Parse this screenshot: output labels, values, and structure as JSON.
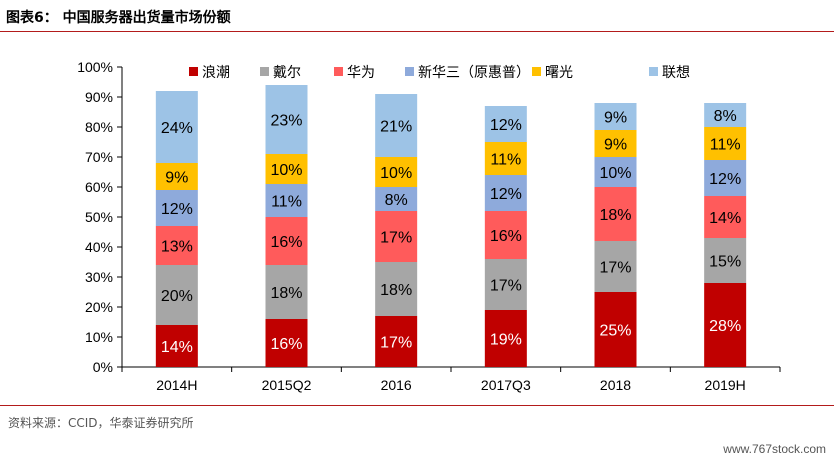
{
  "header": {
    "title": "图表6：  中国服务器出货量市场份额"
  },
  "footer": {
    "source": "资料来源：CCID，华泰证券研究所"
  },
  "watermark": "www.767stock.com",
  "chart_data": {
    "type": "bar",
    "stacked": true,
    "categories": [
      "2014H",
      "2015Q2",
      "2016",
      "2017Q3",
      "2018",
      "2019H"
    ],
    "series": [
      {
        "name": "浪潮",
        "color": "#c00000",
        "values": [
          14,
          16,
          17,
          19,
          25,
          28
        ],
        "labels": [
          "14%",
          "16%",
          "17%",
          "19%",
          "25%",
          "28%"
        ]
      },
      {
        "name": "戴尔",
        "color": "#a6a6a6",
        "values": [
          20,
          18,
          18,
          17,
          17,
          15
        ],
        "labels": [
          "20%",
          "18%",
          "18%",
          "17%",
          "17%",
          "15%"
        ]
      },
      {
        "name": "华为",
        "color": "#ff5b5b",
        "values": [
          13,
          16,
          17,
          16,
          18,
          14
        ],
        "labels": [
          "13%",
          "16%",
          "17%",
          "16%",
          "18%",
          "14%"
        ]
      },
      {
        "name": "新华三（原惠普）",
        "color": "#8eaadb",
        "values": [
          12,
          11,
          8,
          12,
          10,
          12
        ],
        "labels": [
          "12%",
          "11%",
          "8%",
          "12%",
          "10%",
          "12%"
        ]
      },
      {
        "name": "曙光",
        "color": "#ffc000",
        "values": [
          9,
          10,
          10,
          11,
          9,
          11
        ],
        "labels": [
          "9%",
          "10%",
          "10%",
          "11%",
          "9%",
          "11%"
        ]
      },
      {
        "name": "联想",
        "color": "#9dc3e6",
        "values": [
          24,
          23,
          21,
          12,
          9,
          8
        ],
        "labels": [
          "24%",
          "23%",
          "21%",
          "12%",
          "9%",
          "8%"
        ]
      }
    ],
    "ylim": [
      0,
      100
    ],
    "yticks": [
      0,
      10,
      20,
      30,
      40,
      50,
      60,
      70,
      80,
      90,
      100
    ],
    "ytick_labels": [
      "0%",
      "10%",
      "20%",
      "30%",
      "40%",
      "50%",
      "60%",
      "70%",
      "80%",
      "90%",
      "100%"
    ],
    "legend_position": "top",
    "grid": false
  }
}
